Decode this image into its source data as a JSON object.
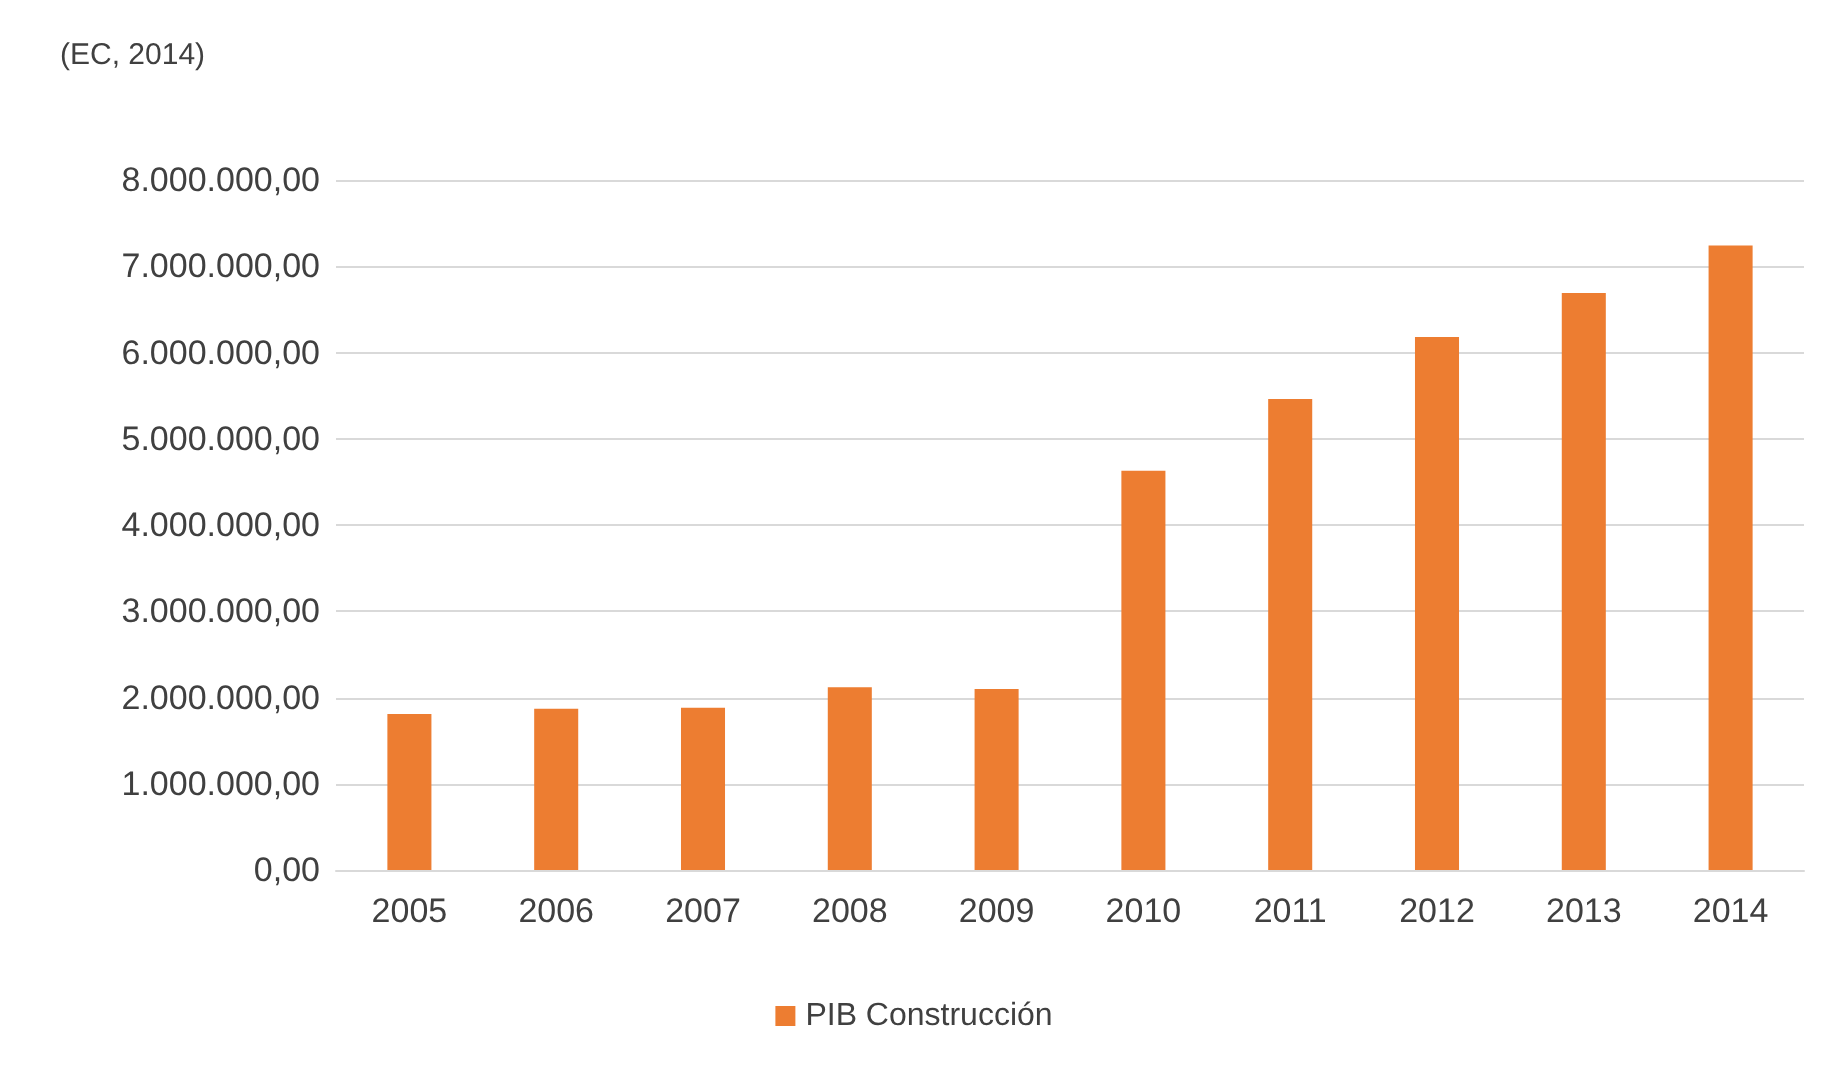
{
  "chart_data": {
    "type": "bar",
    "ylabel": "(EC, 2014)",
    "categories": [
      "2005",
      "2006",
      "2007",
      "2008",
      "2009",
      "2010",
      "2011",
      "2012",
      "2013",
      "2014"
    ],
    "series": [
      {
        "name": "PIB Construcción",
        "color": "#ed7d31",
        "values": [
          1810000,
          1870000,
          1880000,
          2120000,
          2100000,
          4630000,
          5460000,
          6180000,
          6690000,
          7240000
        ]
      }
    ],
    "ylim": [
      0,
      8000000
    ],
    "yticks": [
      {
        "value": 0,
        "label": "0,00"
      },
      {
        "value": 1000000,
        "label": "1.000.000,00"
      },
      {
        "value": 2000000,
        "label": "2.000.000,00"
      },
      {
        "value": 3000000,
        "label": "3.000.000,00"
      },
      {
        "value": 4000000,
        "label": "4.000.000,00"
      },
      {
        "value": 5000000,
        "label": "5.000.000,00"
      },
      {
        "value": 6000000,
        "label": "6.000.000,00"
      },
      {
        "value": 7000000,
        "label": "7.000.000,00"
      },
      {
        "value": 8000000,
        "label": "8.000.000,00"
      }
    ],
    "grid": "y",
    "legend": "bottom"
  }
}
